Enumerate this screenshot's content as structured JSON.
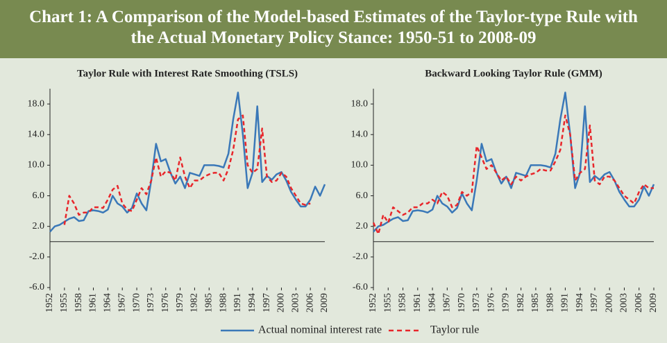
{
  "title": "Chart 1: A Comparison of the Model-based Estimates of the Taylor-type Rule with the Actual Monetary Policy Stance: 1950-51 to 2008-09",
  "chart_data": [
    {
      "type": "line",
      "title": "Taylor Rule with Interest Rate Smoothing (TSLS)",
      "x": [
        1952,
        1953,
        1954,
        1955,
        1956,
        1957,
        1958,
        1959,
        1960,
        1961,
        1962,
        1963,
        1964,
        1965,
        1966,
        1967,
        1968,
        1969,
        1970,
        1971,
        1972,
        1973,
        1974,
        1975,
        1976,
        1977,
        1978,
        1979,
        1980,
        1981,
        1982,
        1983,
        1984,
        1985,
        1986,
        1987,
        1988,
        1989,
        1990,
        1991,
        1992,
        1993,
        1994,
        1995,
        1996,
        1997,
        1998,
        1999,
        2000,
        2001,
        2002,
        2003,
        2004,
        2005,
        2006,
        2007,
        2008,
        2009
      ],
      "series": [
        {
          "name": "Actual nominal interest rate",
          "color": "#3a78b8",
          "style": "solid",
          "values": [
            1.3,
            2.0,
            2.2,
            2.6,
            3.0,
            3.2,
            2.7,
            2.8,
            4.0,
            4.1,
            4.0,
            3.8,
            4.2,
            6.0,
            5.0,
            4.6,
            3.8,
            4.4,
            6.3,
            5.0,
            4.1,
            8.0,
            12.8,
            10.5,
            10.8,
            9.0,
            7.6,
            8.5,
            7.0,
            9.0,
            8.8,
            8.6,
            10.0,
            10.0,
            10.0,
            9.9,
            9.7,
            11.5,
            16.0,
            19.5,
            14.0,
            7.0,
            9.0,
            17.7,
            7.8,
            8.6,
            8.1,
            8.8,
            9.1,
            8.0,
            6.5,
            5.5,
            4.6,
            4.6,
            5.5,
            7.2,
            6.0,
            7.5
          ]
        },
        {
          "name": "Taylor rule",
          "color": "#e8262b",
          "style": "dashed",
          "values": [
            null,
            null,
            null,
            2.2,
            6.0,
            5.0,
            3.5,
            3.8,
            3.8,
            4.5,
            4.5,
            4.4,
            5.5,
            6.8,
            7.3,
            5.0,
            4.2,
            4.0,
            5.5,
            7.0,
            6.2,
            8.0,
            11.0,
            8.5,
            9.2,
            9.0,
            8.0,
            11.0,
            8.5,
            7.0,
            8.0,
            8.0,
            8.5,
            8.8,
            9.0,
            9.0,
            8.0,
            9.5,
            12.0,
            16.0,
            16.5,
            10.0,
            9.0,
            9.5,
            14.8,
            8.5,
            7.8,
            8.0,
            9.0,
            8.5,
            7.0,
            6.0,
            5.0,
            4.8,
            5.0,
            null,
            null,
            null
          ]
        }
      ],
      "xlim": [
        1952,
        2009
      ],
      "xticks": [
        1952,
        1955,
        1958,
        1961,
        1964,
        1967,
        1970,
        1973,
        1976,
        1979,
        1982,
        1985,
        1988,
        1991,
        1994,
        1997,
        2000,
        2003,
        2006,
        2009
      ],
      "ylim": [
        -6,
        20
      ],
      "yticks": [
        {
          "value": -6,
          "label": "-6.0"
        },
        {
          "value": -2,
          "label": "-2.0"
        },
        {
          "value": 2,
          "label": "2.0"
        },
        {
          "value": 6,
          "label": "6.0"
        },
        {
          "value": 10,
          "label": "10.0"
        },
        {
          "value": 14,
          "label": "14.0"
        },
        {
          "value": 18,
          "label": "18.0"
        }
      ]
    },
    {
      "type": "line",
      "title": "Backward Looking Taylor Rule (GMM)",
      "x": [
        1952,
        1953,
        1954,
        1955,
        1956,
        1957,
        1958,
        1959,
        1960,
        1961,
        1962,
        1963,
        1964,
        1965,
        1966,
        1967,
        1968,
        1969,
        1970,
        1971,
        1972,
        1973,
        1974,
        1975,
        1976,
        1977,
        1978,
        1979,
        1980,
        1981,
        1982,
        1983,
        1984,
        1985,
        1986,
        1987,
        1988,
        1989,
        1990,
        1991,
        1992,
        1993,
        1994,
        1995,
        1996,
        1997,
        1998,
        1999,
        2000,
        2001,
        2002,
        2003,
        2004,
        2005,
        2006,
        2007,
        2008,
        2009
      ],
      "series": [
        {
          "color": "#3a78b8",
          "style": "solid",
          "values": [
            1.3,
            2.0,
            2.2,
            2.6,
            3.0,
            3.2,
            2.7,
            2.8,
            4.0,
            4.1,
            4.0,
            3.8,
            4.2,
            6.0,
            5.0,
            4.6,
            3.8,
            4.4,
            6.3,
            5.0,
            4.1,
            8.0,
            12.8,
            10.5,
            10.8,
            9.0,
            7.6,
            8.5,
            7.0,
            9.0,
            8.8,
            8.6,
            10.0,
            10.0,
            10.0,
            9.9,
            9.7,
            11.5,
            16.0,
            19.5,
            14.0,
            7.0,
            9.0,
            17.7,
            7.8,
            8.6,
            8.1,
            8.8,
            9.1,
            8.0,
            6.5,
            5.5,
            4.6,
            4.6,
            5.5,
            7.2,
            6.0,
            7.5
          ]
        },
        {
          "color": "#e8262b",
          "style": "dashed",
          "values": [
            2.5,
            1.0,
            3.5,
            2.5,
            4.5,
            4.0,
            3.5,
            3.8,
            4.5,
            4.5,
            5.0,
            5.0,
            5.5,
            5.0,
            6.5,
            6.0,
            4.5,
            4.8,
            6.5,
            6.0,
            6.5,
            12.5,
            11.0,
            9.5,
            10.0,
            9.0,
            8.0,
            8.5,
            7.5,
            8.5,
            8.0,
            8.5,
            8.8,
            9.0,
            9.5,
            9.3,
            9.3,
            10.5,
            12.0,
            16.5,
            14.0,
            8.0,
            9.0,
            9.5,
            15.2,
            8.0,
            7.5,
            8.5,
            8.5,
            8.0,
            7.0,
            6.0,
            5.5,
            5.0,
            6.5,
            7.5,
            7.0,
            7.0
          ]
        }
      ],
      "xlim": [
        1952,
        2009
      ],
      "xticks": [
        1952,
        1955,
        1958,
        1961,
        1964,
        1967,
        1970,
        1973,
        1976,
        1979,
        1982,
        1985,
        1988,
        1991,
        1994,
        1997,
        2000,
        2003,
        2006,
        2009
      ],
      "ylim": [
        -6,
        20
      ],
      "yticks": [
        {
          "value": -6,
          "label": "-6.0"
        },
        {
          "value": -2,
          "label": "-2.0"
        },
        {
          "value": 2,
          "label": "2.0"
        },
        {
          "value": 6,
          "label": "6.0"
        },
        {
          "value": 10,
          "label": "10.0"
        },
        {
          "value": 14,
          "label": "14.0"
        },
        {
          "value": 18,
          "label": "18.0"
        }
      ]
    }
  ]
}
